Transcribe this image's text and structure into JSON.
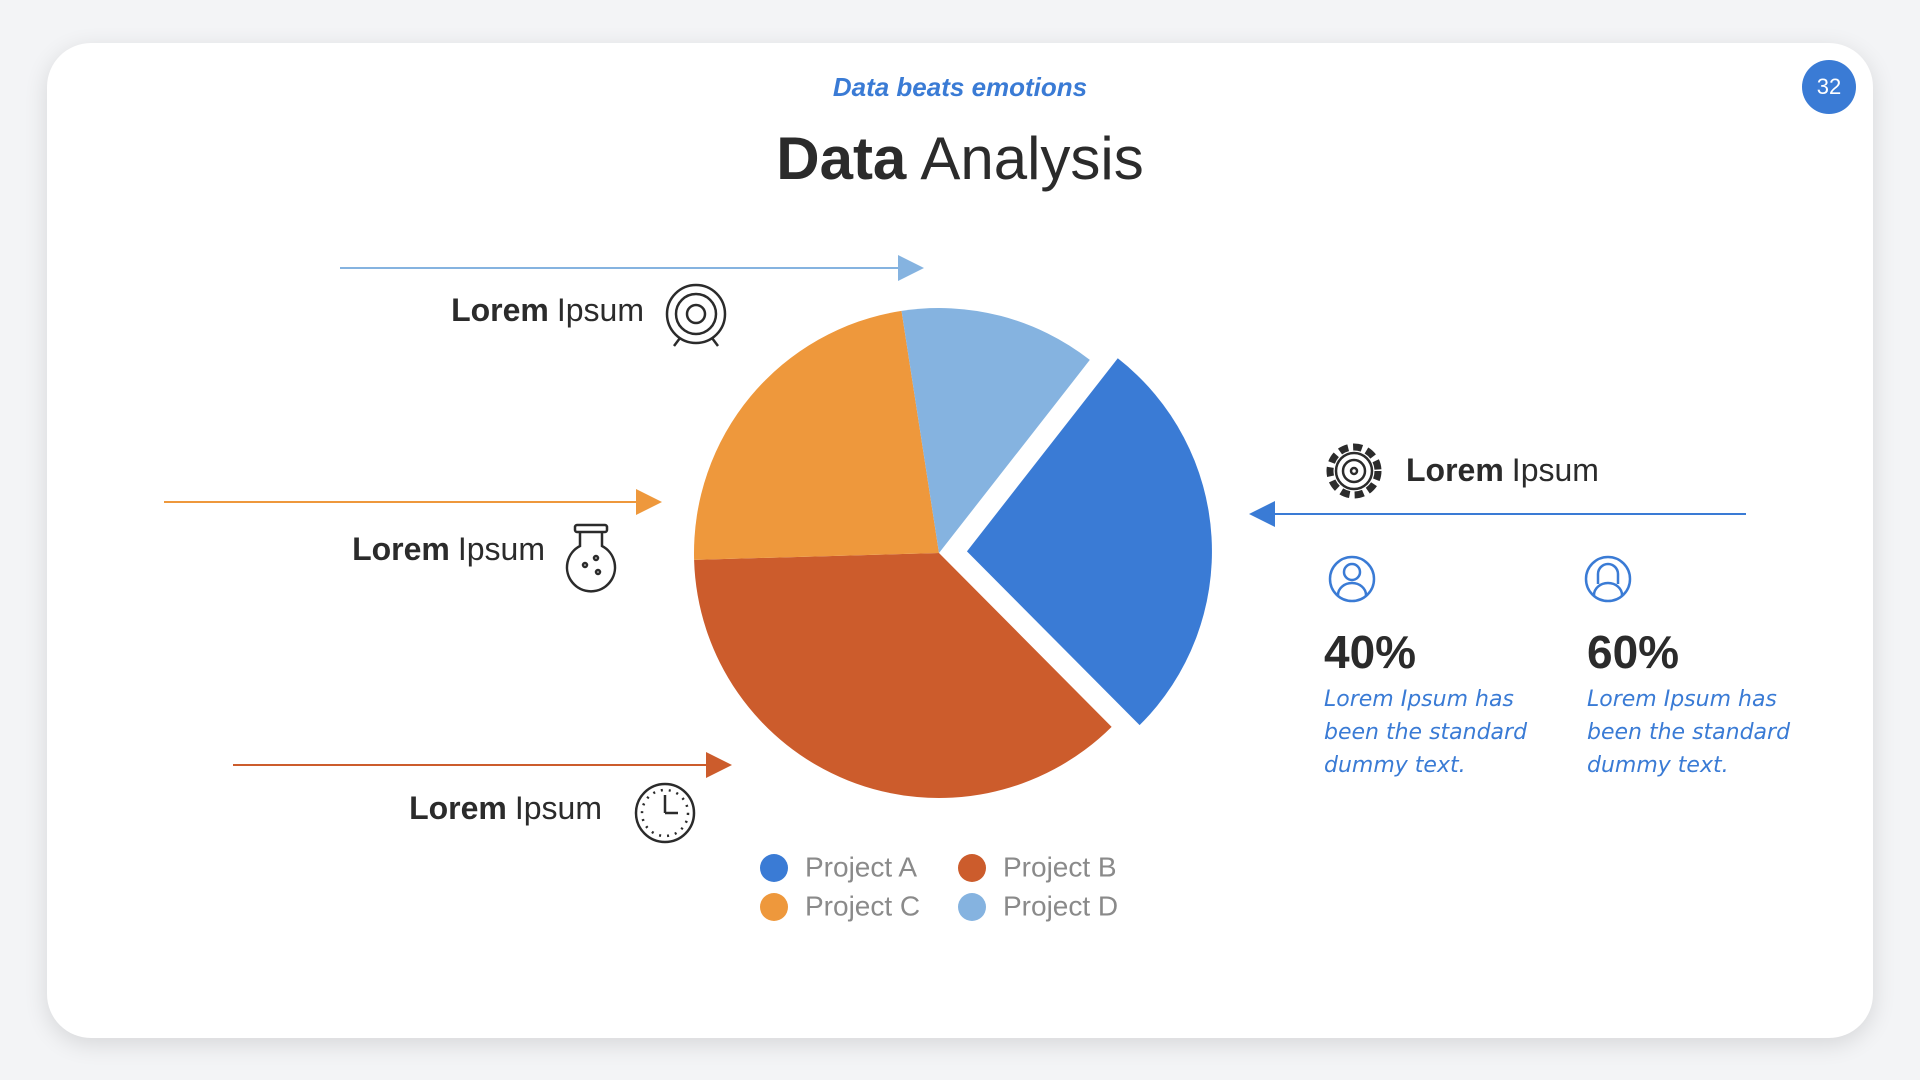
{
  "slide": {
    "subtitle": "Data beats emotions",
    "title": [
      "Data",
      "Analysis"
    ],
    "page_number": "32",
    "callouts": [
      [
        "Lorem",
        "Ipsum"
      ],
      [
        "Lorem",
        "Ipsum"
      ],
      [
        "Lorem",
        "Ipsum"
      ],
      [
        "Lorem",
        "Ipsum"
      ]
    ],
    "stats": [
      {
        "value": "40%",
        "text": "Lorem Ipsum has been the standard dummy text."
      },
      {
        "value": "60%",
        "text": "Lorem Ipsum has been the standard dummy text."
      }
    ]
  },
  "chart_data": {
    "type": "pie",
    "categories": [
      "Project A",
      "Project B",
      "Project C",
      "Project D"
    ],
    "values": [
      27,
      37,
      23,
      13
    ],
    "colors": [
      "#3a7bd5",
      "#cc5c2c",
      "#ee983c",
      "#85b3e0"
    ]
  }
}
